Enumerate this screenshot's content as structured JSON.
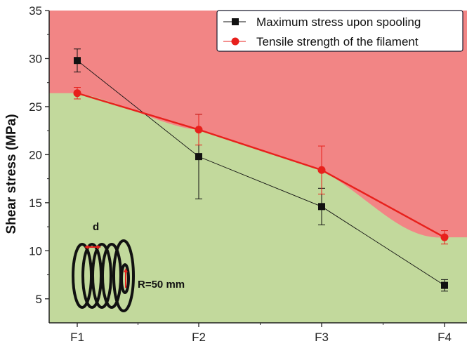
{
  "colors": {
    "fail_region": "#f28585",
    "safe_region": "#c2d99c",
    "stress_series": "#111111",
    "strength_series": "#e8201c",
    "axis": "#222222"
  },
  "chart_data": {
    "type": "line",
    "categories": [
      "F1",
      "F2",
      "F3",
      "F4"
    ],
    "ylabel": "Shear stress (MPa)",
    "xlabel": "",
    "ylim": [
      2.5,
      35
    ],
    "yticks": [
      5,
      10,
      15,
      20,
      25,
      30,
      35
    ],
    "grid": false,
    "legend_position": "top-right",
    "series": [
      {
        "name": "Maximum stress upon spooling",
        "marker": "square",
        "color": "#111111",
        "values": [
          29.8,
          19.8,
          14.6,
          6.4
        ],
        "errors": [
          1.2,
          4.4,
          1.9,
          0.6
        ]
      },
      {
        "name": "Tensile strength of the filament",
        "marker": "circle",
        "color": "#e8201c",
        "values": [
          26.4,
          22.6,
          18.4,
          11.4
        ],
        "errors": [
          0.6,
          1.6,
          2.5,
          0.7
        ]
      }
    ],
    "annotations": {
      "spool_d_label": "d",
      "spool_r_label": "R=50 mm"
    }
  }
}
